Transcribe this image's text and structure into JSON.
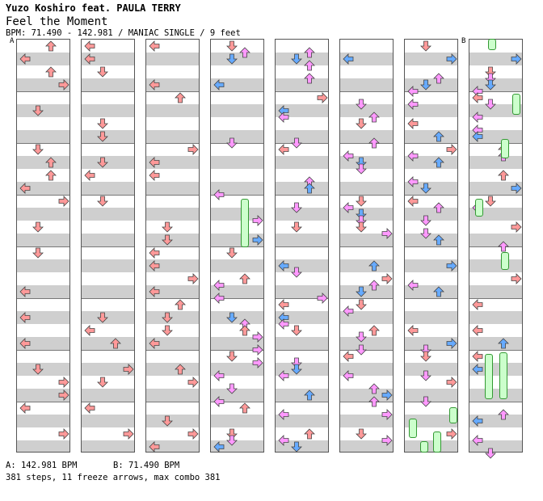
{
  "header": {
    "artist": "Yuzo Koshiro feat. PAULA TERRY",
    "title": "Feel the Moment",
    "meta": "BPM: 71.490 - 142.981 / MANIAC SINGLE / 9 feet"
  },
  "markers": {
    "a": "A",
    "b": "B"
  },
  "footer": {
    "bpm_a": "A: 142.981 BPM",
    "bpm_b": "B: 71.490 BPM",
    "summary": "381 steps, 11 freeze arrows, max combo 381"
  },
  "colors": {
    "quarter": "#ff9999",
    "eighth": "#66aaff",
    "sixteenth": "#ff99ff",
    "freeze": "#ccffcc"
  },
  "icons": {
    "left": "left-arrow-icon",
    "down": "down-arrow-icon",
    "up": "up-arrow-icon",
    "right": "right-arrow-icon"
  }
}
